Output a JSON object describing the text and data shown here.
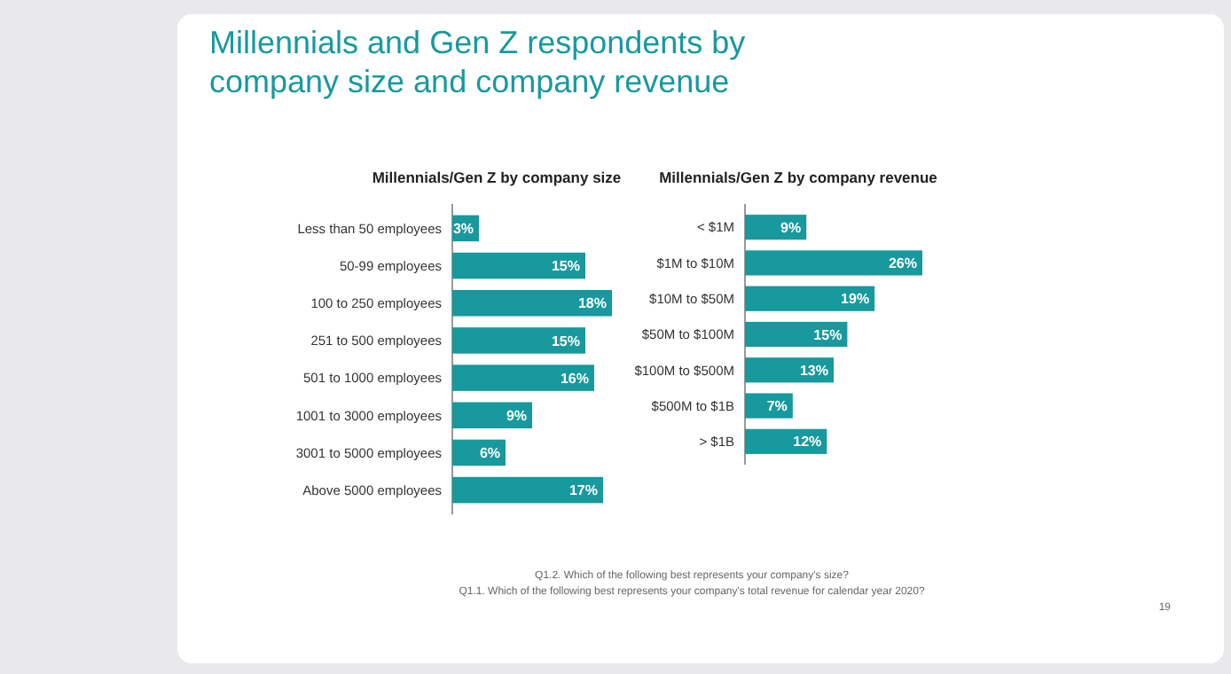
{
  "chart_data": [
    {
      "type": "bar",
      "orientation": "horizontal",
      "title": "Millennials/Gen Z by company size",
      "annotations": [
        "Millennials and Gen Z respondents by company size and company revenue"
      ],
      "categories": [
        "Less than 50 employees",
        "50-99 employees",
        "100 to 250 employees",
        "251 to 500 employees",
        "501 to 1000 employees",
        "1001 to 3000 employees",
        "3001 to 5000 employees",
        "Above 5000 employees"
      ],
      "values": [
        3,
        15,
        18,
        15,
        16,
        9,
        6,
        17
      ],
      "value_labels": [
        "3%",
        "15%",
        "18%",
        "15%",
        "16%",
        "9%",
        "6%",
        "17%"
      ],
      "color": "#17999e"
    },
    {
      "type": "bar",
      "orientation": "horizontal",
      "title": "Millennials/Gen Z by company revenue",
      "annotations": [
        "Q1.2. Which of the following best represents your company's size?",
        "Q1.1. Which of the following best represents your company's total revenue for calendar year 2020?",
        "19"
      ],
      "categories": [
        "< $1M",
        "$1M to $10M",
        "$10M to $50M",
        "$50M to $100M",
        "$100M to $500M",
        "$500M to $1B",
        "> $1B"
      ],
      "values": [
        9,
        26,
        19,
        15,
        13,
        7,
        12
      ],
      "value_labels": [
        "9%",
        "26%",
        "19%",
        "15%",
        "13%",
        "7%",
        "12%"
      ],
      "color": "#17999e"
    }
  ]
}
